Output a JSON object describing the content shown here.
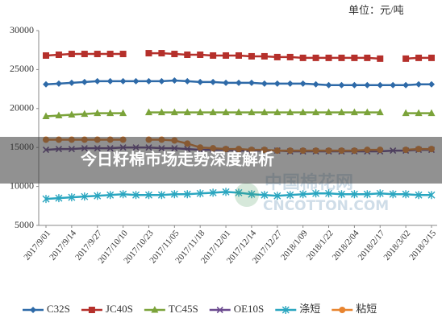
{
  "chart_data": {
    "type": "line",
    "unit_label": "单位：元/吨",
    "categories": [
      "2017/9/01",
      null,
      "2017/9/14",
      null,
      "2017/9/27",
      null,
      "2017/10/10",
      null,
      "2017/10/23",
      null,
      "2017/11/05",
      null,
      "2017/11/18",
      null,
      "2017/12/01",
      null,
      "2017/12/14",
      null,
      "2017/12/27",
      null,
      "2018/1/09",
      null,
      "2018/1/22",
      null,
      "2018/2/04",
      null,
      "2018/2/17",
      null,
      "2018/3/02",
      null,
      "2018/3/15"
    ],
    "series": [
      {
        "name": "C32S",
        "color": "#2e6aa8",
        "marker": "diamond",
        "values": [
          23100,
          23200,
          23300,
          23400,
          23500,
          23500,
          23500,
          23500,
          23500,
          23500,
          23600,
          23500,
          23400,
          23400,
          23300,
          23300,
          23300,
          23200,
          23200,
          23200,
          23200,
          23100,
          23000,
          23000,
          23000,
          23000,
          23000,
          23000,
          23000,
          23100,
          23100
        ]
      },
      {
        "name": "JC40S",
        "color": "#b5302b",
        "marker": "square",
        "values": [
          26800,
          26900,
          27000,
          27000,
          27000,
          27000,
          27000,
          null,
          27100,
          27100,
          27000,
          26900,
          26900,
          26800,
          26800,
          26800,
          26700,
          26700,
          26600,
          26600,
          26500,
          26500,
          26500,
          26500,
          26500,
          26500,
          26400,
          null,
          26400,
          26500,
          26500
        ]
      },
      {
        "name": "TC45S",
        "color": "#7ba33a",
        "marker": "triangle",
        "values": [
          19000,
          19100,
          19200,
          19300,
          19400,
          19400,
          19400,
          null,
          19500,
          19500,
          19500,
          19500,
          19500,
          19500,
          19500,
          19500,
          19500,
          19500,
          19500,
          19500,
          19500,
          19500,
          19500,
          19500,
          19500,
          19500,
          19500,
          null,
          19400,
          19400,
          19400
        ]
      },
      {
        "name": "OE10S",
        "color": "#6b4a8f",
        "marker": "cross",
        "values": [
          14700,
          14800,
          14800,
          14900,
          14900,
          14900,
          15000,
          15000,
          15000,
          14900,
          14900,
          14800,
          14700,
          14700,
          14700,
          14600,
          14600,
          14600,
          14600,
          14500,
          14500,
          14500,
          14500,
          14500,
          14500,
          14500,
          14500,
          14600,
          14600,
          14700,
          14700
        ]
      },
      {
        "name": "涤短",
        "color": "#2aa6c0",
        "marker": "star",
        "values": [
          8400,
          8500,
          8600,
          8700,
          8800,
          8900,
          9000,
          8900,
          8900,
          8900,
          9000,
          9000,
          9100,
          9200,
          9300,
          9200,
          9000,
          8900,
          8800,
          8900,
          9000,
          9100,
          9100,
          9000,
          9000,
          9000,
          9100,
          9000,
          9000,
          8900,
          8900
        ]
      },
      {
        "name": "粘短",
        "color": "#e8842f",
        "marker": "circle",
        "values": [
          16000,
          16000,
          16000,
          16000,
          16000,
          16000,
          16000,
          null,
          16000,
          16000,
          15900,
          15500,
          15000,
          14900,
          14800,
          14800,
          14700,
          14700,
          14600,
          14600,
          14600,
          14600,
          14600,
          14600,
          14600,
          14700,
          14700,
          null,
          14700,
          14800,
          14800
        ]
      }
    ],
    "ylim": [
      5000,
      30000
    ],
    "yticks": [
      5000,
      10000,
      15000,
      20000,
      25000,
      30000
    ],
    "grid": false,
    "legend": "bottom"
  },
  "overlay": {
    "banner": "今日籽棉市场走势深度解析",
    "watermark": [
      "中国棉花网",
      "CNCOTTON.COM"
    ]
  }
}
